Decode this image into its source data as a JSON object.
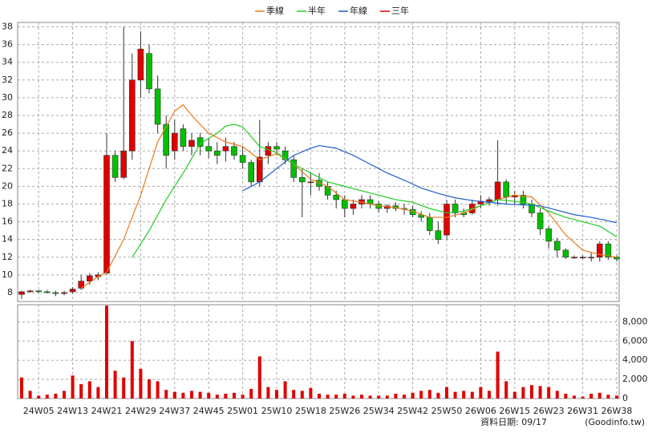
{
  "chart_data": {
    "type": "candlestick",
    "categories": [
      null,
      null,
      "24W05",
      null,
      null,
      null,
      "24W13",
      null,
      null,
      null,
      "24W21",
      null,
      null,
      null,
      "24W29",
      null,
      null,
      null,
      "24W37",
      null,
      null,
      null,
      "24W45",
      null,
      null,
      null,
      "25W01",
      null,
      null,
      null,
      "25W10",
      null,
      null,
      null,
      "25W18",
      null,
      null,
      null,
      "25W26",
      null,
      null,
      null,
      "25W34",
      null,
      null,
      null,
      "25W42",
      null,
      null,
      null,
      "25W50",
      null,
      null,
      null,
      "26W06",
      null,
      null,
      null,
      "26W15",
      null,
      null,
      null,
      "26W23",
      null,
      null,
      null,
      "26W31",
      null,
      null,
      null,
      "26W38"
    ],
    "open": [
      7.8,
      8.1,
      8.2,
      8.1,
      8.0,
      7.9,
      8.1,
      8.5,
      9.3,
      9.8,
      10.2,
      23.5,
      21,
      24,
      32,
      35,
      31,
      27,
      24,
      26.5,
      24.5,
      25.5,
      24.5,
      24,
      24,
      24.5,
      23.5,
      22.7,
      20.5,
      23.5,
      24.5,
      24,
      23,
      21,
      20.5,
      20.7,
      20,
      19,
      18.5,
      17.5,
      18,
      18.5,
      18,
      17.5,
      17.8,
      17.5,
      17.4,
      16.8,
      16.5,
      15,
      14.5,
      18,
      17,
      17,
      18,
      18.3,
      18.5,
      20.5,
      18.8,
      19,
      18,
      17,
      15.2,
      13.8,
      12.8,
      12,
      12,
      12,
      12,
      13.5,
      12
    ],
    "high": [
      8.2,
      8.3,
      8.3,
      8.3,
      8.2,
      8.2,
      8.6,
      10,
      10.2,
      10.3,
      26,
      24,
      38,
      35,
      37.5,
      36,
      32.5,
      28,
      27.5,
      27,
      26,
      26,
      25.5,
      25,
      25.5,
      25,
      24.5,
      23,
      27.5,
      25,
      25,
      24.5,
      23.5,
      22,
      21.5,
      21.5,
      20.5,
      19.5,
      19,
      18.5,
      19,
      19,
      18.3,
      18,
      18.2,
      18,
      17.8,
      17.2,
      17,
      16,
      18.5,
      18.5,
      17.5,
      18.5,
      19,
      18.8,
      25.2,
      20.8,
      19.5,
      19.5,
      18.5,
      17.5,
      15.5,
      14.2,
      13,
      12.2,
      12.2,
      12.5,
      13.8,
      13.8,
      12.2
    ],
    "low": [
      7.3,
      8.0,
      8.0,
      7.9,
      7.6,
      7.7,
      7.9,
      8.3,
      8.9,
      9.4,
      10,
      20.5,
      20.8,
      23,
      30,
      30.5,
      26,
      22,
      23,
      24,
      23.5,
      23.5,
      23.2,
      22.5,
      22.8,
      23,
      22,
      20,
      20,
      22.5,
      23.5,
      22.5,
      20.5,
      16.5,
      19,
      19.5,
      18.5,
      17.5,
      16.5,
      16.8,
      17.5,
      17.5,
      17,
      17,
      17.2,
      16.8,
      16.5,
      16,
      14.5,
      13.5,
      14,
      16.5,
      16.5,
      16.8,
      17.5,
      17.8,
      17.8,
      18,
      18,
      17.5,
      16.5,
      14.5,
      13,
      12,
      11.8,
      11.8,
      11.8,
      11.5,
      11.5,
      11.7,
      11.5
    ],
    "close": [
      8.1,
      8.2,
      8.1,
      8.0,
      7.9,
      8.0,
      8.4,
      9.3,
      9.9,
      10.0,
      23.5,
      21,
      24,
      32,
      35.5,
      31,
      27,
      23.5,
      26,
      24.5,
      25.2,
      24.5,
      24,
      23.5,
      24.5,
      23.5,
      22.7,
      20.5,
      23.3,
      24.5,
      24.2,
      23,
      21,
      20.5,
      20.5,
      20,
      19,
      18.5,
      17.5,
      18,
      18.5,
      18,
      17.5,
      17.8,
      17.5,
      17.4,
      16.8,
      16.5,
      15,
      14,
      18,
      17,
      16.8,
      18,
      18.3,
      18.5,
      20.5,
      18.8,
      19,
      18,
      17,
      15.2,
      13.8,
      12.8,
      12,
      12,
      12,
      12,
      13.5,
      12,
      11.8
    ],
    "volume": [
      2200,
      800,
      300,
      400,
      500,
      800,
      2400,
      1500,
      1800,
      1200,
      9700,
      2900,
      2200,
      6000,
      3100,
      2000,
      1800,
      900,
      700,
      600,
      800,
      700,
      600,
      400,
      500,
      600,
      400,
      1000,
      4400,
      1200,
      900,
      1800,
      900,
      800,
      1100,
      500,
      400,
      400,
      500,
      300,
      400,
      300,
      300,
      300,
      500,
      400,
      600,
      800,
      900,
      600,
      1200,
      700,
      800,
      700,
      1200,
      800,
      4900,
      1800,
      700,
      1200,
      1400,
      1300,
      1200,
      800,
      500,
      300,
      200,
      500,
      600,
      400,
      300
    ],
    "up_color": "#e00000",
    "down_color": "#00c000",
    "series": [
      {
        "name": "季線",
        "color": "#e87b1e",
        "x": [
          7,
          9,
          10,
          12,
          14,
          16,
          18,
          19,
          20,
          22,
          24,
          26,
          28,
          30,
          32,
          34,
          36,
          38,
          40,
          42,
          44,
          46,
          48,
          50,
          52,
          54,
          56,
          58,
          60,
          62,
          64,
          66,
          68,
          70
        ],
        "values": [
          8.5,
          9.8,
          10.3,
          14,
          19,
          25,
          28.5,
          29.2,
          28,
          26,
          25,
          24.5,
          23,
          23.7,
          22.5,
          20.8,
          20,
          18.5,
          18.2,
          17.8,
          17.6,
          17.2,
          16.5,
          16.5,
          17,
          17.8,
          18.5,
          19,
          18.8,
          17,
          14.5,
          12.8,
          12.3,
          12
        ]
      },
      {
        "name": "半年",
        "color": "#22cc22",
        "x": [
          13,
          15,
          17,
          19,
          21,
          23,
          24,
          25,
          26,
          28,
          30,
          32,
          34,
          36,
          38,
          40,
          42,
          44,
          46,
          48,
          50,
          52,
          54,
          56,
          58,
          60,
          62,
          64,
          66,
          68,
          70
        ],
        "values": [
          12,
          15,
          18.5,
          21.5,
          24.8,
          26,
          26.8,
          27,
          26.7,
          24.5,
          23.8,
          22.5,
          21.5,
          20.5,
          20,
          19.5,
          19,
          18.5,
          18.2,
          17.5,
          17,
          17.2,
          17.8,
          18.5,
          18.3,
          18,
          17.2,
          16.5,
          16,
          15.5,
          14.3
        ]
      },
      {
        "name": "年線",
        "color": "#1f5fcf",
        "x": [
          26,
          28,
          30,
          32,
          34,
          35,
          37,
          39,
          41,
          43,
          45,
          47,
          49,
          51,
          53,
          55,
          57,
          59,
          61,
          63,
          65,
          67,
          69,
          70
        ],
        "values": [
          19.5,
          20.5,
          22,
          23.5,
          24.3,
          24.6,
          24.3,
          23.5,
          22.5,
          21.5,
          20.7,
          19.8,
          19.2,
          18.7,
          18.4,
          18.2,
          18,
          17.9,
          17.8,
          17.3,
          16.8,
          16.5,
          16.1,
          15.9
        ]
      },
      {
        "name": "三年",
        "color": "#e00000"
      }
    ],
    "ylim": [
      7,
      38.5
    ],
    "yticks": [
      8,
      10,
      12,
      14,
      16,
      18,
      20,
      22,
      24,
      26,
      28,
      30,
      32,
      34,
      36,
      38
    ],
    "y2lim": [
      0,
      9800
    ],
    "y2ticks": [
      0,
      {
        "value": 2000,
        "label": "2,000"
      },
      {
        "value": 4000,
        "label": "4,000"
      },
      {
        "value": 6000,
        "label": "6,000"
      },
      {
        "value": 8000,
        "label": "8,000"
      }
    ],
    "grid": true,
    "footer_date": "資料日期: 09/17",
    "footer_source": "(Goodinfo.tw)"
  }
}
